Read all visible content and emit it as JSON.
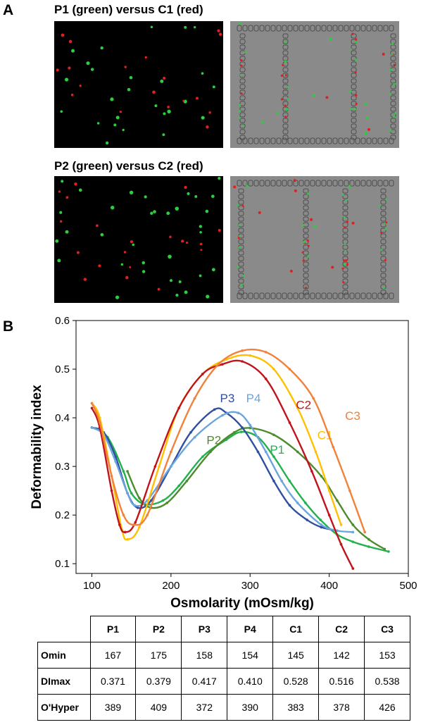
{
  "panel_a": {
    "letter": "A",
    "rows": [
      {
        "title": "P1 (green) versus C1 (red)"
      },
      {
        "title": "P2 (green) versus C2 (red)"
      }
    ]
  },
  "panel_b": {
    "letter": "B"
  },
  "colors": {
    "P1": "#22b14c",
    "P2": "#4e8b2c",
    "P3": "#2f4fa0",
    "P4": "#6aa5de",
    "C1": "#ffc000",
    "C2": "#c0131b",
    "C3": "#f0823c",
    "dark_green_marker": "#2ecc40",
    "red_marker": "#e02020"
  },
  "chart_data": {
    "type": "line",
    "title": "",
    "xlabel": "Osmolarity (mOsm/kg)",
    "ylabel": "Deformability index",
    "xlim": [
      80,
      500
    ],
    "ylim": [
      0.08,
      0.6
    ],
    "xticks": [
      100,
      200,
      300,
      400,
      500
    ],
    "yticks": [
      0.1,
      0.2,
      0.3,
      0.4,
      0.5,
      0.6
    ],
    "grid": false,
    "legend": "inline labels",
    "series": [
      {
        "name": "P1",
        "x": [
          100,
          120,
          140,
          150,
          167,
          190,
          210,
          240,
          270,
          289,
          310,
          330,
          350,
          370,
          389,
          410,
          430,
          450,
          475
        ],
        "y": [
          0.38,
          0.36,
          0.29,
          0.245,
          0.222,
          0.23,
          0.26,
          0.32,
          0.355,
          0.371,
          0.36,
          0.32,
          0.27,
          0.225,
          0.19,
          0.16,
          0.145,
          0.135,
          0.125
        ]
      },
      {
        "name": "P2",
        "x": [
          145,
          160,
          175,
          195,
          220,
          250,
          280,
          300,
          330,
          360,
          390,
          410,
          430,
          450,
          470
        ],
        "y": [
          0.29,
          0.235,
          0.215,
          0.225,
          0.27,
          0.33,
          0.37,
          0.379,
          0.365,
          0.33,
          0.28,
          0.23,
          0.18,
          0.15,
          0.13
        ]
      },
      {
        "name": "P3",
        "x": [
          100,
          115,
          130,
          145,
          158,
          175,
          200,
          225,
          255,
          270,
          290,
          310,
          330,
          350,
          372,
          390,
          410
        ],
        "y": [
          0.38,
          0.37,
          0.32,
          0.245,
          0.215,
          0.23,
          0.3,
          0.37,
          0.417,
          0.41,
          0.38,
          0.33,
          0.27,
          0.22,
          0.19,
          0.175,
          0.168
        ]
      },
      {
        "name": "P4",
        "x": [
          100,
          115,
          130,
          145,
          154,
          170,
          200,
          230,
          265,
          285,
          300,
          320,
          340,
          360,
          390,
          410,
          430
        ],
        "y": [
          0.38,
          0.365,
          0.31,
          0.245,
          0.22,
          0.23,
          0.3,
          0.36,
          0.405,
          0.41,
          0.385,
          0.33,
          0.27,
          0.225,
          0.18,
          0.168,
          0.165
        ]
      },
      {
        "name": "C1",
        "x": [
          100,
          110,
          125,
          138,
          145,
          160,
          185,
          210,
          240,
          270,
          300,
          330,
          360,
          383,
          400,
          415
        ],
        "y": [
          0.43,
          0.4,
          0.28,
          0.17,
          0.15,
          0.175,
          0.3,
          0.42,
          0.49,
          0.52,
          0.528,
          0.5,
          0.42,
          0.33,
          0.25,
          0.18
        ]
      },
      {
        "name": "C2",
        "x": [
          100,
          110,
          125,
          135,
          142,
          155,
          180,
          210,
          240,
          265,
          290,
          320,
          350,
          378,
          400,
          415,
          430
        ],
        "y": [
          0.42,
          0.38,
          0.25,
          0.18,
          0.165,
          0.185,
          0.3,
          0.42,
          0.49,
          0.51,
          0.516,
          0.48,
          0.39,
          0.29,
          0.2,
          0.14,
          0.09
        ]
      },
      {
        "name": "C3",
        "x": [
          100,
          110,
          125,
          140,
          153,
          170,
          200,
          230,
          260,
          290,
          320,
          350,
          380,
          405,
          426,
          445
        ],
        "y": [
          0.43,
          0.39,
          0.28,
          0.2,
          0.18,
          0.2,
          0.33,
          0.44,
          0.51,
          0.538,
          0.535,
          0.5,
          0.44,
          0.34,
          0.25,
          0.165
        ]
      }
    ]
  },
  "table": {
    "headers": [
      "",
      "P1",
      "P2",
      "P3",
      "P4",
      "C1",
      "C2",
      "C3"
    ],
    "rows": [
      {
        "label": "Omin",
        "values": [
          "167",
          "175",
          "158",
          "154",
          "145",
          "142",
          "153"
        ]
      },
      {
        "label": "DImax",
        "values": [
          "0.371",
          "0.379",
          "0.417",
          "0.410",
          "0.528",
          "0.516",
          "0.538"
        ]
      },
      {
        "label": "O'Hyper",
        "values": [
          "389",
          "409",
          "372",
          "390",
          "383",
          "378",
          "426"
        ]
      }
    ]
  }
}
